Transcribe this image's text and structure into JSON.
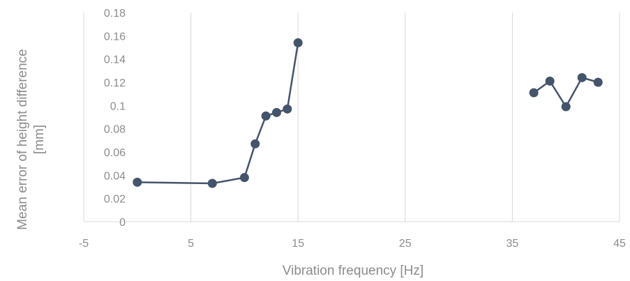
{
  "chart_data": {
    "type": "scatter",
    "xlabel": "Vibration frequency [Hz]",
    "ylabel": "Mean error of height difference [mm]",
    "xlim": [
      -5,
      45
    ],
    "ylim": [
      0,
      0.18
    ],
    "xticks": [
      -5,
      5,
      15,
      25,
      35,
      45
    ],
    "yticks": [
      0,
      0.02,
      0.04,
      0.06,
      0.08,
      0.1,
      0.12,
      0.14,
      0.16,
      0.18
    ],
    "ytick_labels": [
      "0",
      "0.02",
      "0.04",
      "0.06",
      "0.08",
      "0.1",
      "0.12",
      "0.14",
      "0.16",
      "0.18"
    ],
    "grid": "vertical",
    "legend": "none",
    "colors": {
      "series": "#44546a",
      "grid": "#d9d9d9",
      "text": "#8c8c8c"
    },
    "series": [
      {
        "points": [
          {
            "x": 0,
            "y": 0.034
          },
          {
            "x": 7,
            "y": 0.033
          },
          {
            "x": 10,
            "y": 0.038
          },
          {
            "x": 11,
            "y": 0.067
          },
          {
            "x": 12,
            "y": 0.091
          },
          {
            "x": 13,
            "y": 0.094
          },
          {
            "x": 14,
            "y": 0.097
          },
          {
            "x": 15,
            "y": 0.154
          }
        ]
      },
      {
        "points": [
          {
            "x": 37,
            "y": 0.111
          },
          {
            "x": 38.5,
            "y": 0.121
          },
          {
            "x": 40,
            "y": 0.099
          },
          {
            "x": 41.5,
            "y": 0.124
          },
          {
            "x": 43,
            "y": 0.12
          }
        ]
      }
    ]
  }
}
